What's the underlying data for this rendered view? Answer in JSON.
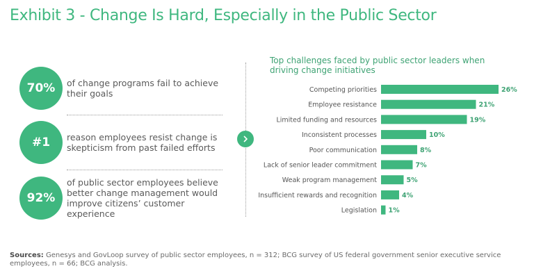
{
  "title": "Exhibit 3 - Change Is Hard, Especially in the Public Sector",
  "stats": [
    {
      "value": "70%",
      "text": "of change programs fail to achieve their goals"
    },
    {
      "value": "#1",
      "text": "reason employees resist change is skepticism from past failed efforts"
    },
    {
      "value": "92%",
      "text": "of public sector employees believe better change management would improve citizens’ customer experience"
    }
  ],
  "arrow_icon": "chevron-right-icon",
  "colors": {
    "accent": "#3fb77f",
    "bar": "#3fb77f",
    "label": "#3fa374"
  },
  "chart_data": {
    "type": "bar",
    "orientation": "horizontal",
    "title": "Top challenges faced by public sector leaders when driving change initiatives",
    "categories": [
      "Competing priorities",
      "Employee resistance",
      "Limited funding and resources",
      "Inconsistent processes",
      "Poor communication",
      "Lack of senior leader commitment",
      "Weak program management",
      "Insufficient rewards and recognition",
      "Legislation"
    ],
    "values": [
      26,
      21,
      19,
      10,
      8,
      7,
      5,
      4,
      1
    ],
    "value_labels": [
      "26%",
      "21%",
      "19%",
      "10%",
      "8%",
      "7%",
      "5%",
      "4%",
      "1%"
    ],
    "xlim": [
      0,
      26
    ],
    "grid": false
  },
  "sources": {
    "label": "Sources:",
    "text": "Genesys and GovLoop survey of public sector employees, n = 312; BCG survey of US federal government senior executive service employees, n = 66; BCG analysis."
  }
}
